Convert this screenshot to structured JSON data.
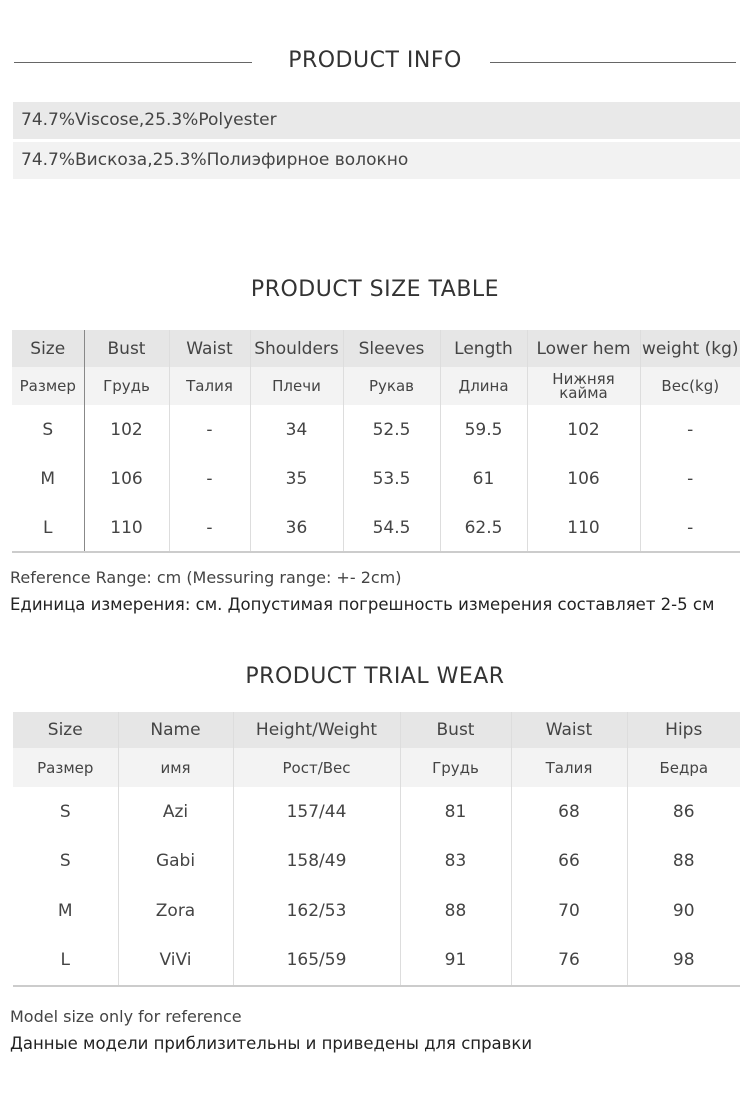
{
  "product_info": {
    "title": "PRODUCT INFO",
    "lines": [
      "74.7%Viscose,25.3%Polyester",
      "74.7%Вискоза,25.3%Полиэфирное волокно"
    ]
  },
  "size_table": {
    "title": "PRODUCT SIZE TABLE",
    "headers_en": [
      "Size",
      "Bust",
      "Waist",
      "Shoulders",
      "Sleeves",
      "Length",
      "Lower hem",
      "weight (kg)"
    ],
    "headers_ru": [
      "Размер",
      "Грудь",
      "Талия",
      "Плечи",
      "Рукав",
      "Длина",
      "Нижняя кайма",
      "Вес(kg)"
    ],
    "rows": [
      [
        "S",
        "102",
        "-",
        "34",
        "52.5",
        "59.5",
        "102",
        "-"
      ],
      [
        "M",
        "106",
        "-",
        "35",
        "53.5",
        "61",
        "106",
        "-"
      ],
      [
        "L",
        "110",
        "-",
        "36",
        "54.5",
        "62.5",
        "110",
        "-"
      ]
    ],
    "note_en": "Reference Range: cm (Messuring range: +- 2cm)",
    "note_ru": "Единица измерения: см. Допустимая погрешность измерения составляет 2-5 см"
  },
  "trial_table": {
    "title": "PRODUCT TRIAL WEAR",
    "headers_en": [
      "Size",
      "Name",
      "Height/Weight",
      "Bust",
      "Waist",
      "Hips"
    ],
    "headers_ru": [
      "Размер",
      "имя",
      "Рост/Вес",
      "Грудь",
      "Талия",
      "Бедра"
    ],
    "rows": [
      [
        "S",
        "Azi",
        "157/44",
        "81",
        "68",
        "86"
      ],
      [
        "S",
        "Gabi",
        "158/49",
        "83",
        "66",
        "88"
      ],
      [
        "M",
        "Zora",
        "162/53",
        "88",
        "70",
        "90"
      ],
      [
        "L",
        "ViVi",
        "165/59",
        "91",
        "76",
        "98"
      ]
    ],
    "note_en": "Model size only for reference",
    "note_ru": "Данные модели приблизительны и приведены для справки"
  }
}
